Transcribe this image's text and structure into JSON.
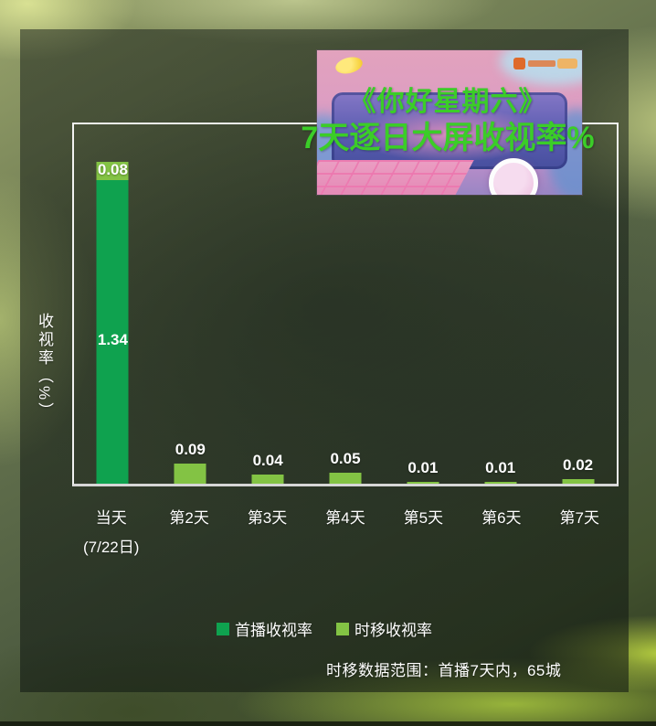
{
  "title": {
    "line1": "《你好星期六》",
    "line2": "7天逐日大屏收视率%",
    "color": "#3bcd28"
  },
  "y_axis_label": "收视率（%）",
  "footnote": "时移数据范围：首播7天内，65城",
  "legend": [
    {
      "label": "首播收视率",
      "color": "#0fa24f"
    },
    {
      "label": "时移收视率",
      "color": "#83c344"
    }
  ],
  "chart_data": {
    "type": "bar",
    "stacked": true,
    "title": "《你好星期六》7天逐日大屏收视率%",
    "ylabel": "收视率（%）",
    "xlabel": "",
    "grid": false,
    "legend_position": "bottom",
    "ylim": [
      0,
      1.6
    ],
    "categories": [
      {
        "label": "当天",
        "sublabel": "(7/22日)"
      },
      {
        "label": "第2天"
      },
      {
        "label": "第3天"
      },
      {
        "label": "第4天"
      },
      {
        "label": "第5天"
      },
      {
        "label": "第6天"
      },
      {
        "label": "第7天"
      }
    ],
    "series": [
      {
        "name": "首播收视率",
        "color": "#0fa24f",
        "values": [
          1.34,
          0,
          0,
          0,
          0,
          0,
          0
        ]
      },
      {
        "name": "时移收视率",
        "color": "#83c344",
        "values": [
          0.08,
          0.09,
          0.04,
          0.05,
          0.01,
          0.01,
          0.02
        ]
      }
    ],
    "bar_top_labels": [
      "0.08",
      "0.09",
      "0.04",
      "0.05",
      "0.01",
      "0.01",
      "0.02"
    ],
    "inner_bar_label": "1.34",
    "colors": {
      "first_play": "#0fa24f",
      "time_shift": "#83c344",
      "axis_line": "#d6d6d6",
      "plot_border": "#ffffff",
      "label_text": "#ffffff"
    }
  }
}
